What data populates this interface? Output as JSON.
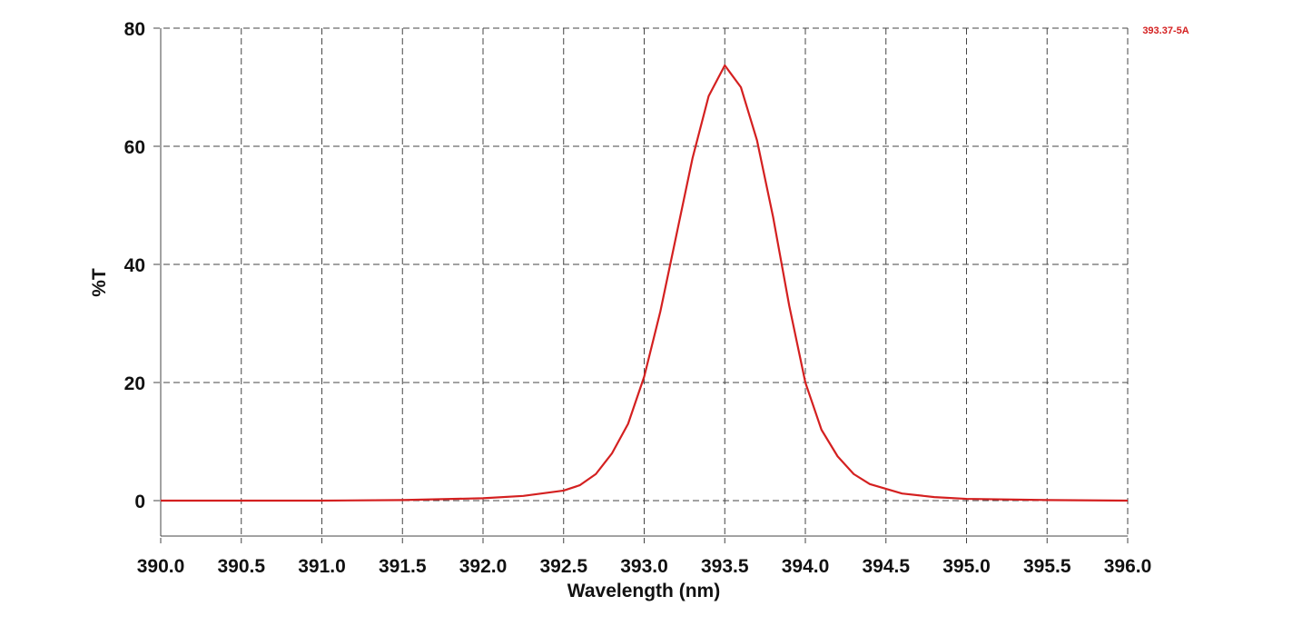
{
  "chart_data": {
    "type": "line",
    "annotation": "393.37-5A",
    "x_label": "Wavelength (nm)",
    "y_label": "%T",
    "xlim": [
      390,
      396
    ],
    "ylim": [
      -6,
      80
    ],
    "xticks": [
      {
        "value": 390,
        "label": "390.0"
      },
      390.5,
      {
        "value": 391,
        "label": "391.0"
      },
      391.5,
      {
        "value": 392,
        "label": "392.0"
      },
      392.5,
      {
        "value": 393,
        "label": "393.0"
      },
      393.5,
      {
        "value": 394,
        "label": "394.0"
      },
      394.5,
      {
        "value": 395,
        "label": "395.0"
      },
      395.5,
      {
        "value": 396,
        "label": "396.0"
      }
    ],
    "yticks": [
      0,
      20,
      40,
      60,
      80
    ],
    "grid": true,
    "series": [
      {
        "color": "#d42020",
        "x": [
          390,
          391,
          391.5,
          392,
          392.25,
          392.5,
          392.6,
          392.7,
          392.8,
          392.9,
          393.0,
          393.1,
          393.2,
          393.3,
          393.4,
          393.5,
          393.6,
          393.7,
          393.8,
          393.9,
          394.0,
          394.1,
          394.2,
          394.3,
          394.4,
          394.6,
          394.8,
          395.0,
          395.5,
          396
        ],
        "values": [
          0,
          0,
          0.1,
          0.4,
          0.8,
          1.7,
          2.6,
          4.5,
          8,
          13,
          21,
          32,
          45,
          58,
          68.5,
          73.7,
          70,
          61,
          48,
          33,
          20,
          12,
          7.5,
          4.5,
          2.8,
          1.2,
          0.6,
          0.3,
          0.1,
          0
        ]
      }
    ]
  }
}
